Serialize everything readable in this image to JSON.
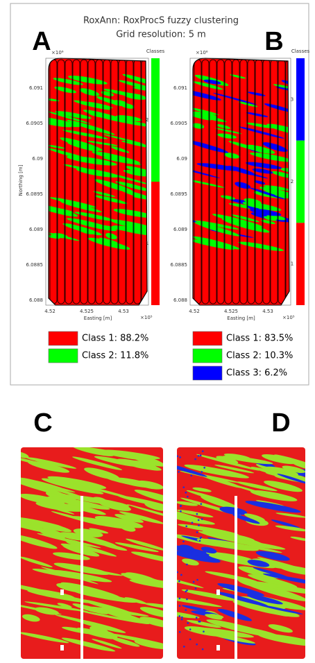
{
  "title": [
    "RoxAnn: RoxProcS fuzzy clustering",
    "Grid resolution: 5 m"
  ],
  "axes": {
    "y_label": "Northing [m]",
    "x_label": "Easting [m]",
    "y_exponent": "×10⁶",
    "x_exponent": "×10⁵",
    "y_ticks": [
      "6.091",
      "6.0905",
      "6.09",
      "6.0895",
      "6.089",
      "6.0885",
      "6.088"
    ],
    "x_ticks": [
      "4.52",
      "4.525",
      "4.53"
    ]
  },
  "panels": [
    {
      "letter": "A",
      "colorbar_title": "Classes",
      "colorbar_labels": [
        "2",
        "1"
      ],
      "legend": [
        "Class 1: 88.2%",
        "Class 2: 11.8%"
      ]
    },
    {
      "letter": "B",
      "colorbar_title": "Classes",
      "colorbar_labels": [
        "3",
        "2",
        "1"
      ],
      "legend": [
        "Class 1: 83.5%",
        "Class 2: 10.3%",
        "Class 3: 6.2%"
      ]
    }
  ],
  "lower_panels": [
    "C",
    "D"
  ]
}
